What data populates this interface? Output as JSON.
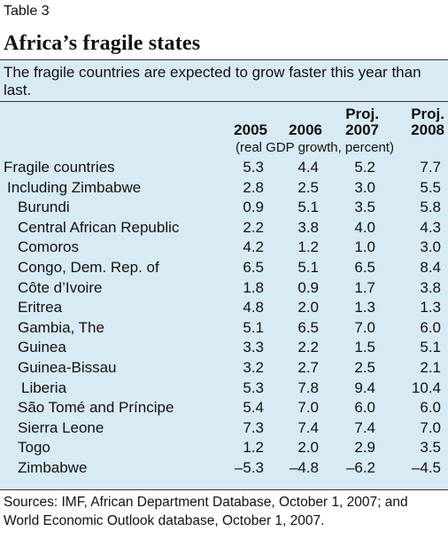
{
  "table_label": "Table 3",
  "title": "Africa’s fragile states",
  "subtitle": "The fragile countries are expected to grow faster this year than last.",
  "columns": [
    {
      "top": "",
      "bottom": "2005"
    },
    {
      "top": "",
      "bottom": "2006"
    },
    {
      "top": "Proj.",
      "bottom": "2007"
    },
    {
      "top": "Proj.",
      "bottom": "2008"
    }
  ],
  "units": "(real GDP growth, percent)",
  "rows": [
    {
      "name": "Fragile countries",
      "indent": 0,
      "values": [
        "5.3",
        "4.4",
        "5.2",
        "7.7"
      ]
    },
    {
      "name": "Including Zimbabwe",
      "indent": 1,
      "values": [
        "2.8",
        "2.5",
        "3.0",
        "5.5"
      ]
    },
    {
      "name": "Burundi",
      "indent": 2,
      "values": [
        "0.9",
        "5.1",
        "3.5",
        "5.8"
      ]
    },
    {
      "name": "Central African Republic",
      "indent": 2,
      "values": [
        "2.2",
        "3.8",
        "4.0",
        "4.3"
      ]
    },
    {
      "name": "Comoros",
      "indent": 2,
      "values": [
        "4.2",
        "1.2",
        "1.0",
        "3.0"
      ]
    },
    {
      "name": "Congo, Dem. Rep. of",
      "indent": 2,
      "values": [
        "6.5",
        "5.1",
        "6.5",
        "8.4"
      ]
    },
    {
      "name": "Côte d’Ivoire",
      "indent": 2,
      "values": [
        "1.8",
        "0.9",
        "1.7",
        "3.8"
      ]
    },
    {
      "name": "Eritrea",
      "indent": 2,
      "values": [
        "4.8",
        "2.0",
        "1.3",
        "1.3"
      ]
    },
    {
      "name": "Gambia, The",
      "indent": 2,
      "values": [
        "5.1",
        "6.5",
        "7.0",
        "6.0"
      ]
    },
    {
      "name": "Guinea",
      "indent": 2,
      "values": [
        "3.3",
        "2.2",
        "1.5",
        "5.1"
      ]
    },
    {
      "name": "Guinea-Bissau",
      "indent": 2,
      "values": [
        "3.2",
        "2.7",
        "2.5",
        "2.1"
      ]
    },
    {
      "name": "Liberia",
      "indent": 3,
      "values": [
        "5.3",
        "7.8",
        "9.4",
        "10.4"
      ]
    },
    {
      "name": "São Tomé and Príncipe",
      "indent": 2,
      "values": [
        "5.4",
        "7.0",
        "6.0",
        "6.0"
      ]
    },
    {
      "name": "Sierra Leone",
      "indent": 2,
      "values": [
        "7.3",
        "7.4",
        "7.4",
        "7.0"
      ]
    },
    {
      "name": "Togo",
      "indent": 2,
      "values": [
        "1.2",
        "2.0",
        "2.9",
        "3.5"
      ]
    },
    {
      "name": "Zimbabwe",
      "indent": 2,
      "values": [
        "–5.3",
        "–4.8",
        "–6.2",
        "–4.5"
      ]
    }
  ],
  "source": "Sources: IMF, African Department Database, October 1, 2007; and World Economic Outlook database, October 1, 2007."
}
